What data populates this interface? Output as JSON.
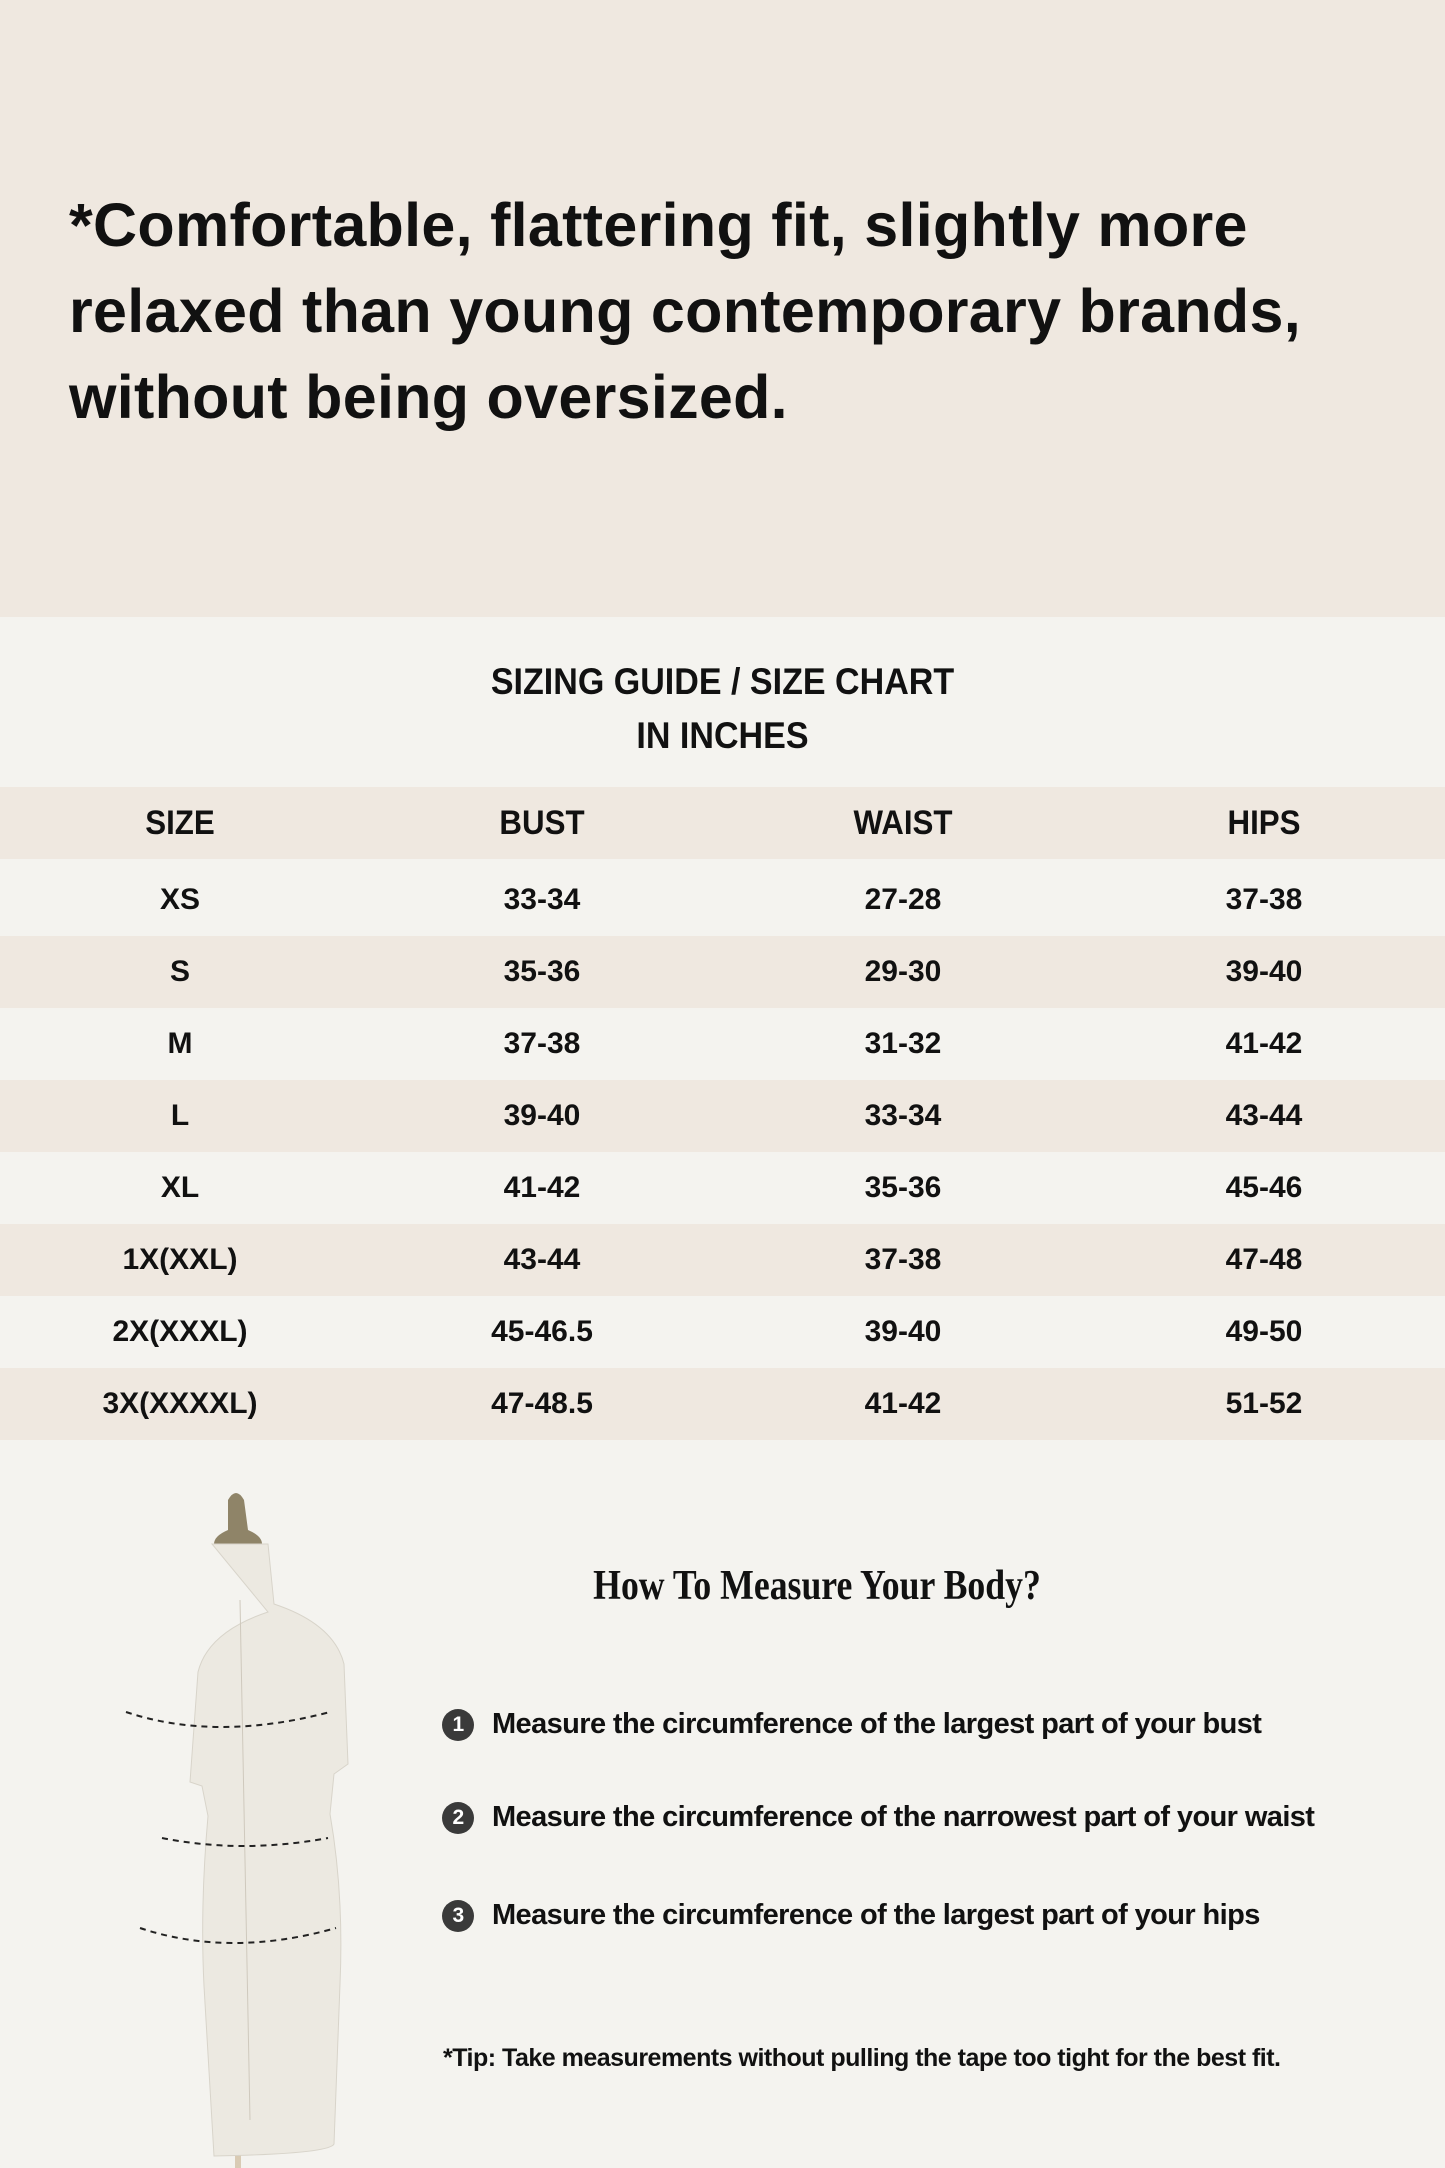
{
  "intro": {
    "headline": "*Comfortable, flattering fit, slightly more relaxed than young contemporary brands, without being oversized."
  },
  "size_chart": {
    "title_line1": "SIZING GUIDE / SIZE CHART",
    "title_line2": "IN INCHES",
    "columns": [
      "SIZE",
      "BUST",
      "WAIST",
      "HIPS"
    ],
    "rows": [
      [
        "XS",
        "33-34",
        "27-28",
        "37-38"
      ],
      [
        "S",
        "35-36",
        "29-30",
        "39-40"
      ],
      [
        "M",
        "37-38",
        "31-32",
        "41-42"
      ],
      [
        "L",
        "39-40",
        "33-34",
        "43-44"
      ],
      [
        "XL",
        "41-42",
        "35-36",
        "45-46"
      ],
      [
        "1X(XXL)",
        "43-44",
        "37-38",
        "47-48"
      ],
      [
        "2X(XXXL)",
        "45-46.5",
        "39-40",
        "49-50"
      ],
      [
        "3X(XXXXL)",
        "47-48.5",
        "41-42",
        "51-52"
      ]
    ]
  },
  "measure": {
    "title": "How To Measure Your Body?",
    "steps": [
      {
        "num": "1",
        "text": "Measure the circumference of the largest part of your bust"
      },
      {
        "num": "2",
        "text": "Measure the circumference of the narrowest part of your waist"
      },
      {
        "num": "3",
        "text": "Measure the circumference of the largest part of your hips"
      }
    ],
    "tip": "*Tip: Take measurements without pulling the tape too tight for the best fit."
  },
  "colors": {
    "beige": "#efe8e0",
    "background": "#f4f3ef",
    "text": "#111111"
  }
}
